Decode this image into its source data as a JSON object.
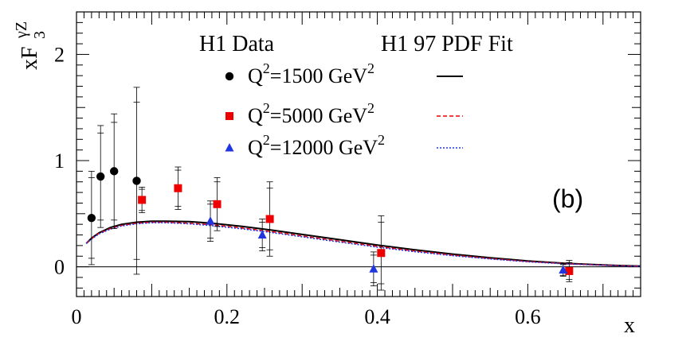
{
  "chart_data": {
    "type": "scatter",
    "ylabel": {
      "main": "xF",
      "sub": "3",
      "sup": "γZ"
    },
    "xlabel": "x",
    "xlim": [
      0,
      0.75
    ],
    "ylim": [
      -0.28,
      2.4
    ],
    "xticks": [
      {
        "value": 0,
        "label": "0"
      },
      {
        "value": 0.2,
        "label": "0.2"
      },
      {
        "value": 0.4,
        "label": "0.4"
      },
      {
        "value": 0.6,
        "label": "0.6"
      }
    ],
    "yticks": [
      {
        "value": 0,
        "label": "0"
      },
      {
        "value": 1,
        "label": "1"
      },
      {
        "value": 2,
        "label": "2"
      }
    ],
    "panel_label": "(b)",
    "data_title": "H1 Data",
    "fit_title": "H1 97 PDF Fit",
    "legend": [
      {
        "q_label": "Q",
        "q_sup": "2",
        "value_label": "=1500 GeV",
        "value_sup": "2",
        "marker": "circle",
        "color": "#000000",
        "line_style": "solid"
      },
      {
        "q_label": "Q",
        "q_sup": "2",
        "value_label": "=5000 GeV",
        "value_sup": "2",
        "marker": "square",
        "color": "#ee0000",
        "line_style": "dashed"
      },
      {
        "q_label": "Q",
        "q_sup": "2",
        "value_label": "=12000 GeV",
        "value_sup": "2",
        "marker": "triangle",
        "color": "#1f35e0",
        "line_style": "dotted"
      }
    ],
    "series": [
      {
        "name": "Q2=1500 GeV2",
        "marker": "circle",
        "color": "#000000",
        "points": [
          {
            "x": 0.02,
            "y": 0.46,
            "err_tot": 0.44,
            "err_stat": 0.38
          },
          {
            "x": 0.032,
            "y": 0.85,
            "err_tot": 0.48,
            "err_stat": 0.41
          },
          {
            "x": 0.05,
            "y": 0.9,
            "err_tot": 0.54,
            "err_stat": 0.46
          },
          {
            "x": 0.08,
            "y": 0.81,
            "err_tot": 0.88,
            "err_stat": 0.74
          }
        ]
      },
      {
        "name": "Q2=5000 GeV2",
        "marker": "square",
        "color": "#ee0000",
        "points": [
          {
            "x": 0.087,
            "y": 0.63,
            "err_tot": 0.12,
            "err_stat": 0.1
          },
          {
            "x": 0.135,
            "y": 0.74,
            "err_tot": 0.2,
            "err_stat": 0.17
          },
          {
            "x": 0.187,
            "y": 0.59,
            "err_tot": 0.25,
            "err_stat": 0.21
          },
          {
            "x": 0.257,
            "y": 0.45,
            "err_tot": 0.35,
            "err_stat": 0.29
          },
          {
            "x": 0.405,
            "y": 0.13,
            "err_tot": 0.35,
            "err_stat": 0.29
          },
          {
            "x": 0.655,
            "y": -0.04,
            "err_tot": 0.1,
            "err_stat": 0.08
          }
        ]
      },
      {
        "name": "Q2=12000 GeV2",
        "marker": "triangle",
        "color": "#1f35e0",
        "points": [
          {
            "x": 0.178,
            "y": 0.43,
            "err_tot": 0.19,
            "err_stat": 0.16
          },
          {
            "x": 0.247,
            "y": 0.3,
            "err_tot": 0.15,
            "err_stat": 0.12
          },
          {
            "x": 0.395,
            "y": -0.02,
            "err_tot": 0.16,
            "err_stat": 0.13
          },
          {
            "x": 0.647,
            "y": -0.03,
            "err_tot": 0.06,
            "err_stat": 0.05
          }
        ]
      }
    ],
    "fit_curves": [
      {
        "name": "fit Q2=1500 GeV2",
        "color": "#000000",
        "style": "solid",
        "x": [
          0.013,
          0.02,
          0.03,
          0.045,
          0.06,
          0.08,
          0.1,
          0.12,
          0.15,
          0.18,
          0.22,
          0.26,
          0.3,
          0.35,
          0.4,
          0.45,
          0.5,
          0.55,
          0.6,
          0.65,
          0.7,
          0.75
        ],
        "y": [
          0.22,
          0.27,
          0.32,
          0.37,
          0.4,
          0.42,
          0.43,
          0.43,
          0.425,
          0.41,
          0.38,
          0.345,
          0.305,
          0.255,
          0.205,
          0.16,
          0.12,
          0.085,
          0.055,
          0.033,
          0.017,
          0.006
        ]
      },
      {
        "name": "fit Q2=5000 GeV2",
        "color": "#ee0000",
        "style": "dashed",
        "x": [
          0.013,
          0.02,
          0.03,
          0.045,
          0.06,
          0.08,
          0.1,
          0.12,
          0.15,
          0.18,
          0.22,
          0.26,
          0.3,
          0.35,
          0.4,
          0.45,
          0.5,
          0.55,
          0.6,
          0.65,
          0.7,
          0.75
        ],
        "y": [
          0.22,
          0.265,
          0.315,
          0.36,
          0.39,
          0.41,
          0.42,
          0.42,
          0.41,
          0.395,
          0.365,
          0.33,
          0.29,
          0.24,
          0.192,
          0.148,
          0.11,
          0.078,
          0.05,
          0.03,
          0.015,
          0.005
        ]
      },
      {
        "name": "fit Q2=12000 GeV2",
        "color": "#1f35e0",
        "style": "dotted",
        "x": [
          0.013,
          0.02,
          0.03,
          0.045,
          0.06,
          0.08,
          0.1,
          0.12,
          0.15,
          0.18,
          0.22,
          0.26,
          0.3,
          0.35,
          0.4,
          0.45,
          0.5,
          0.55,
          0.6,
          0.65,
          0.7,
          0.75
        ],
        "y": [
          0.22,
          0.262,
          0.31,
          0.355,
          0.385,
          0.405,
          0.415,
          0.415,
          0.405,
          0.388,
          0.358,
          0.322,
          0.283,
          0.233,
          0.185,
          0.142,
          0.105,
          0.074,
          0.047,
          0.028,
          0.014,
          0.004
        ]
      }
    ]
  }
}
